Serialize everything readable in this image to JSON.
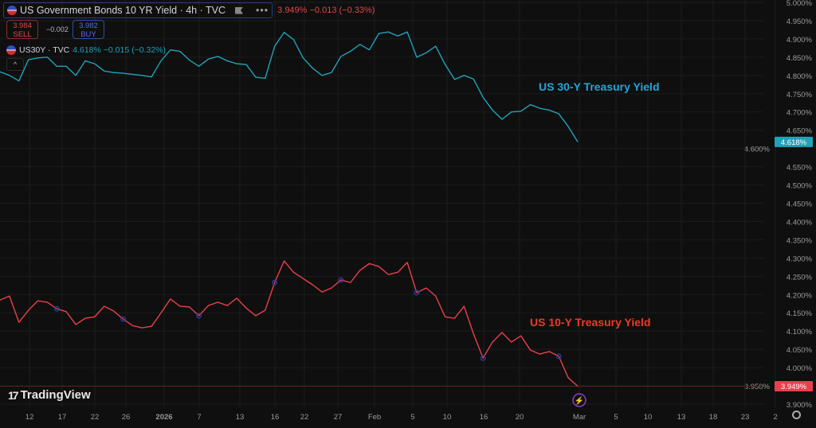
{
  "header": {
    "title": "US Government Bonds 10 YR Yield · 4h · TVC",
    "more_label": "•••",
    "change": "3.949%  −0.013 (−0.33%)",
    "sell_price": "3.984",
    "sell_label": "SELL",
    "spread": "−0.002",
    "buy_price": "3.982",
    "buy_label": "BUY",
    "compare_symbol": "US30Y · TVC",
    "compare_values": "4.618%  −0.015 (−0.32%)",
    "collapse_label": "^"
  },
  "logo": {
    "mark": "17",
    "text": "TradingView"
  },
  "colors": {
    "us30y": "#1fa3b8",
    "us10y": "#e8404a",
    "annot30": "#22a6d6",
    "annot10": "#ee3a24",
    "background": "#0f0f0f",
    "event_marker": "#2a3fa0"
  },
  "chart_data": {
    "type": "line",
    "ylim": [
      3.9,
      5.0
    ],
    "grid": true,
    "y_ticks": [
      "5.000%",
      "4.950%",
      "4.900%",
      "4.850%",
      "4.800%",
      "4.750%",
      "4.700%",
      "4.650%",
      "4.600%",
      "4.550%",
      "4.500%",
      "4.450%",
      "4.400%",
      "4.350%",
      "4.300%",
      "4.250%",
      "4.200%",
      "4.150%",
      "4.100%",
      "4.050%",
      "4.000%",
      "3.950%",
      "3.900%"
    ],
    "x_ticks": [
      "12",
      "17",
      "22",
      "26",
      "2026",
      "7",
      "13",
      "16",
      "22",
      "27",
      "Feb",
      "5",
      "10",
      "16",
      "20",
      "Mar",
      "5",
      "10",
      "13",
      "18",
      "23",
      "2"
    ],
    "annotations": [
      "US 30-Y Treasury Yield",
      "US 10-Y Treasury Yield"
    ],
    "series": [
      {
        "name": "US30Y",
        "last_label": "4.618%",
        "values": [
          4.81,
          4.8,
          4.785,
          4.843,
          4.848,
          4.85,
          4.825,
          4.825,
          4.8,
          4.84,
          4.832,
          4.812,
          4.808,
          4.806,
          4.803,
          4.8,
          4.796,
          4.84,
          4.87,
          4.866,
          4.842,
          4.825,
          4.845,
          4.852,
          4.84,
          4.832,
          4.83,
          4.795,
          4.792,
          4.88,
          4.918,
          4.898,
          4.848,
          4.82,
          4.8,
          4.808,
          4.852,
          4.866,
          4.885,
          4.87,
          4.915,
          4.919,
          4.908,
          4.919,
          4.85,
          4.862,
          4.88,
          4.83,
          4.789,
          4.8,
          4.79,
          4.74,
          4.705,
          4.68,
          4.7,
          4.702,
          4.72,
          4.71,
          4.705,
          4.695,
          4.66,
          4.618
        ]
      },
      {
        "name": "US10Y",
        "last_label": "3.949%",
        "values": [
          4.185,
          4.196,
          4.124,
          4.157,
          4.183,
          4.179,
          4.161,
          4.153,
          4.118,
          4.135,
          4.139,
          4.168,
          4.155,
          4.133,
          4.115,
          4.109,
          4.113,
          4.15,
          4.188,
          4.168,
          4.166,
          4.142,
          4.17,
          4.179,
          4.17,
          4.19,
          4.163,
          4.142,
          4.157,
          4.233,
          4.292,
          4.261,
          4.244,
          4.227,
          4.207,
          4.218,
          4.24,
          4.233,
          4.266,
          4.285,
          4.277,
          4.255,
          4.261,
          4.288,
          4.205,
          4.218,
          4.196,
          4.139,
          4.135,
          4.168,
          4.092,
          4.026,
          4.07,
          4.096,
          4.07,
          4.087,
          4.048,
          4.037,
          4.044,
          4.031,
          3.972,
          3.949
        ]
      }
    ]
  }
}
